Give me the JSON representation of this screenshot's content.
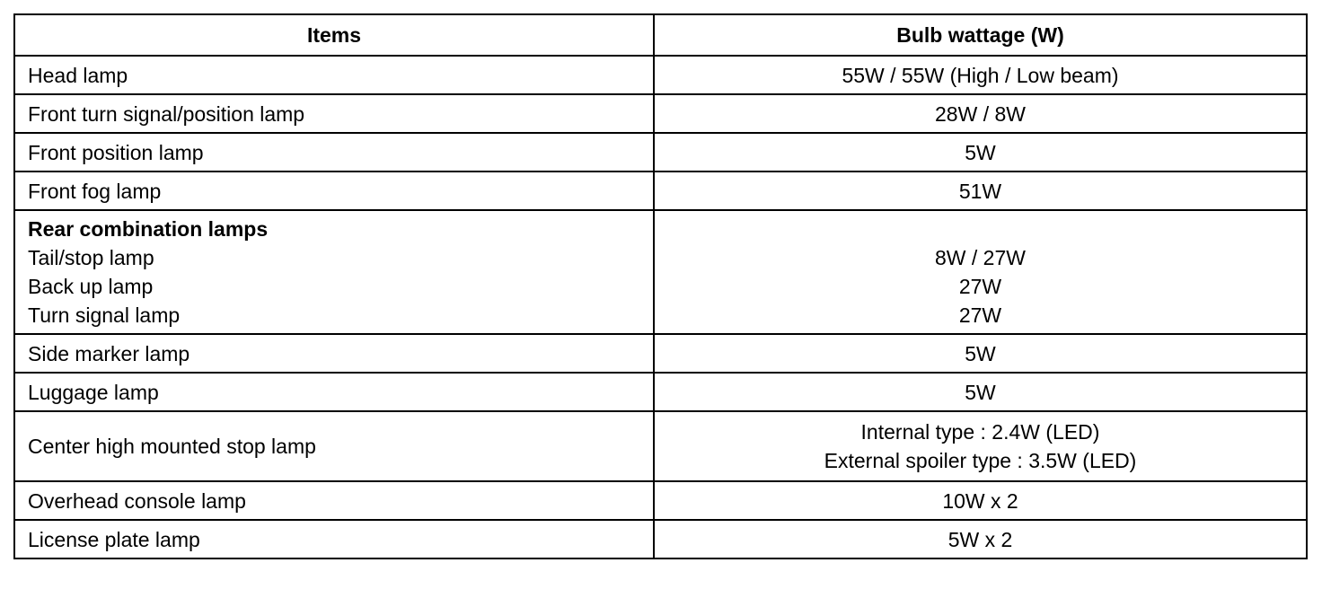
{
  "headers": [
    "Items",
    "Bulb wattage (W)"
  ],
  "rows": [
    {
      "item": [
        "Head lamp"
      ],
      "value": [
        "55W / 55W (High / Low beam)"
      ]
    },
    {
      "item": [
        "Front turn signal/position lamp"
      ],
      "value": [
        "28W / 8W"
      ]
    },
    {
      "item": [
        "Front position lamp"
      ],
      "value": [
        "5W"
      ]
    },
    {
      "item": [
        "Front fog lamp"
      ],
      "value": [
        "51W"
      ]
    },
    {
      "group": "Rear combination lamps",
      "item": [
        "Tail/stop lamp",
        "Back up lamp",
        "Turn signal lamp"
      ],
      "value": [
        "8W / 27W",
        "27W",
        "27W"
      ]
    },
    {
      "item": [
        "Side marker lamp"
      ],
      "value": [
        "5W"
      ]
    },
    {
      "item": [
        "Luggage lamp"
      ],
      "value": [
        "5W"
      ]
    },
    {
      "item": [
        "Center high mounted stop lamp"
      ],
      "value": [
        "Internal type : 2.4W (LED)",
        "External spoiler type : 3.5W (LED)"
      ]
    },
    {
      "item": [
        "Overhead console lamp"
      ],
      "value": [
        "10W x 2"
      ]
    },
    {
      "item": [
        "License plate lamp"
      ],
      "value": [
        "5W x 2"
      ]
    }
  ]
}
